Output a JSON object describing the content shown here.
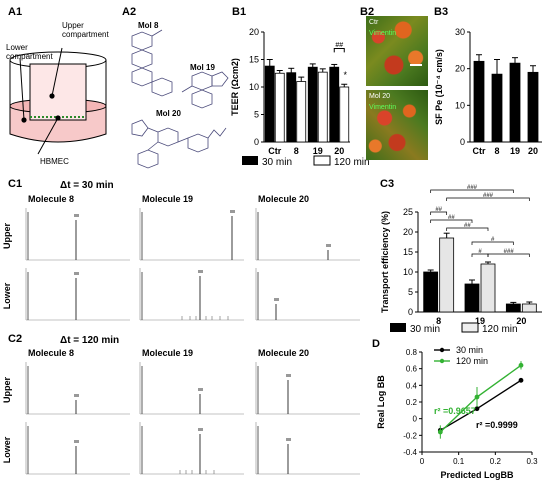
{
  "panels": {
    "A1": "A1",
    "A2": "A2",
    "B1": "B1",
    "B2": "B2",
    "B3": "B3",
    "C1": "C1",
    "C2": "C2",
    "C3": "C3",
    "D": "D"
  },
  "schematic": {
    "upper": "Upper\ncompartment",
    "lower": "Lower\ncompartment",
    "cells": "HBMEC"
  },
  "molecules": {
    "m8": "Mol 8",
    "m19": "Mol 19",
    "m20": "Mol 20"
  },
  "micro": {
    "top_label1": "Ctr",
    "top_label2": "Vimentin",
    "bottom_label1": "Mol 20",
    "bottom_label2": "Vimentin"
  },
  "legend_time": {
    "s1": "30 min",
    "s2": "120 min"
  },
  "c1": {
    "title": "Δt = 30 min"
  },
  "c2": {
    "title": "Δt = 120 min"
  },
  "chrom": {
    "mol_titles": [
      "Molecule 8",
      "Molecule 19",
      "Molecule 20"
    ],
    "rows": [
      "Upper",
      "Lower"
    ]
  },
  "chart_data": [
    {
      "id": "B1",
      "type": "bar",
      "ylabel": "TEER (Ωcm2)",
      "ylim": [
        0,
        20
      ],
      "yticks": [
        0,
        5,
        10,
        15,
        20
      ],
      "categories": [
        "Ctr",
        "8",
        "19",
        "20"
      ],
      "series": [
        {
          "name": "30 min",
          "values": [
            13.8,
            12.6,
            13.6,
            13.6
          ],
          "err": [
            1.2,
            0.8,
            0.6,
            0.5
          ]
        },
        {
          "name": "120 min",
          "values": [
            12.5,
            11.0,
            12.7,
            10.0
          ],
          "err": [
            0.5,
            0.8,
            0.6,
            0.5
          ]
        }
      ],
      "annotations": [
        "##",
        "*"
      ]
    },
    {
      "id": "B3",
      "type": "bar",
      "ylabel": "SF Pe (10⁻⁴ cm/s)",
      "ylim": [
        0,
        30
      ],
      "yticks": [
        0,
        10,
        20,
        30
      ],
      "categories": [
        "Ctr",
        "8",
        "19",
        "20"
      ],
      "values": [
        22,
        18.5,
        21.5,
        19
      ],
      "err": [
        1.8,
        4.0,
        1.5,
        1.8
      ]
    },
    {
      "id": "C3",
      "type": "bar",
      "ylabel": "Transport efficiency (%)",
      "ylim": [
        0,
        25
      ],
      "yticks": [
        0,
        5,
        10,
        15,
        20,
        25
      ],
      "categories": [
        "8",
        "19",
        "20"
      ],
      "series": [
        {
          "name": "30 min",
          "values": [
            10.0,
            7.0,
            2.0
          ],
          "err": [
            0.5,
            1.0,
            0.4
          ]
        },
        {
          "name": "120 min",
          "values": [
            18.5,
            12.0,
            2.0
          ],
          "err": [
            1.2,
            0.5,
            0.5
          ]
        }
      ],
      "annotations": [
        "###",
        "###",
        "##",
        "##",
        "##",
        "#",
        "#",
        "###",
        "###"
      ]
    },
    {
      "id": "D",
      "type": "scatter",
      "xlabel": "Predicted LogBB",
      "ylabel": "Real Log BB",
      "xlim": [
        0,
        0.3
      ],
      "ylim": [
        -0.4,
        0.8
      ],
      "xticks": [
        0,
        0.1,
        0.2,
        0.3
      ],
      "yticks": [
        -0.4,
        -0.2,
        0,
        0.2,
        0.4,
        0.6,
        0.8
      ],
      "series": [
        {
          "name": "30 min",
          "color": "#000000",
          "x": [
            0.05,
            0.15,
            0.27
          ],
          "y": [
            -0.14,
            0.12,
            0.46
          ],
          "r2": "r² =0.9999"
        },
        {
          "name": "120 min",
          "color": "#33b233",
          "x": [
            0.05,
            0.15,
            0.27
          ],
          "y": [
            -0.16,
            0.26,
            0.64
          ],
          "err": [
            0.08,
            0.12,
            0.05
          ],
          "r2": "r² =0.9657"
        }
      ]
    }
  ]
}
